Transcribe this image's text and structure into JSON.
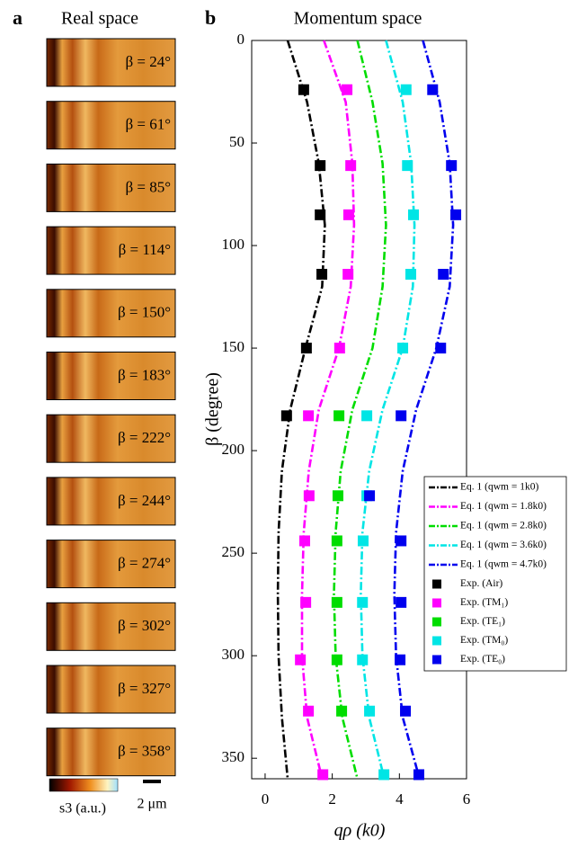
{
  "panel_a": {
    "label": "a",
    "title": "Real space",
    "tiles": [
      "β = 24°",
      "β = 61°",
      "β = 85°",
      "β = 114°",
      "β = 150°",
      "β = 183°",
      "β = 222°",
      "β = 244°",
      "β = 274°",
      "β = 302°",
      "β = 327°",
      "β = 358°"
    ],
    "colorbar_label": "s3 (a.u.)",
    "scale_label": "2 μm"
  },
  "chart_data": {
    "type": "line",
    "label": "b",
    "title": "Momentum space",
    "xlabel": "qρ (k0)",
    "ylabel": "β (degree)",
    "xlim": [
      -0.4,
      6
    ],
    "xticks": [
      0,
      2,
      4,
      6
    ],
    "ylim": [
      0,
      360
    ],
    "yticks": [
      0,
      50,
      100,
      150,
      200,
      250,
      300,
      350
    ],
    "y_inverted": true,
    "curve_beta": [
      0,
      30,
      60,
      90,
      120,
      150,
      180,
      210,
      240,
      270,
      300,
      330,
      360
    ],
    "curves": [
      {
        "name": "Eq. 1 (qwm = 1k0)",
        "color": "#000000",
        "values": [
          0.67,
          1.25,
          1.6,
          1.78,
          1.7,
          1.2,
          0.75,
          0.5,
          0.4,
          0.38,
          0.4,
          0.5,
          0.67
        ]
      },
      {
        "name": "Eq. 1 (qwm = 1.8k0)",
        "color": "#ff00ff",
        "values": [
          1.75,
          2.4,
          2.6,
          2.65,
          2.55,
          2.2,
          1.6,
          1.3,
          1.15,
          1.1,
          1.1,
          1.25,
          1.7
        ]
      },
      {
        "name": "Eq. 1 (qwm = 2.8k0)",
        "color": "#00dd00",
        "values": [
          2.75,
          3.2,
          3.5,
          3.6,
          3.5,
          3.2,
          2.6,
          2.25,
          2.1,
          2.05,
          2.1,
          2.3,
          2.75
        ]
      },
      {
        "name": "Eq. 1 (qwm = 3.6k0)",
        "color": "#00e5e5",
        "values": [
          3.6,
          4.1,
          4.35,
          4.45,
          4.4,
          4.1,
          3.5,
          3.1,
          2.9,
          2.85,
          2.9,
          3.1,
          3.55
        ]
      },
      {
        "name": "Eq. 1 (qwm = 4.7k0)",
        "color": "#0000ee",
        "values": [
          4.7,
          5.2,
          5.5,
          5.6,
          5.5,
          5.1,
          4.5,
          4.1,
          3.9,
          3.85,
          3.9,
          4.1,
          4.6
        ]
      }
    ],
    "exp_beta": [
      24,
      61,
      85,
      114,
      150,
      183,
      222,
      244,
      274,
      302,
      327,
      358
    ],
    "experiments": [
      {
        "name": "Exp. (Air)",
        "color": "#000000",
        "values": [
          1.15,
          1.64,
          1.64,
          1.69,
          1.23,
          0.64,
          null,
          null,
          null,
          null,
          null,
          null
        ]
      },
      {
        "name": "Exp. (TM₁)",
        "color": "#ff00ff",
        "values": [
          2.44,
          2.55,
          2.49,
          2.47,
          2.22,
          1.29,
          1.31,
          1.18,
          1.21,
          1.05,
          1.29,
          1.72
        ]
      },
      {
        "name": "Exp. (TE₁)",
        "color": "#00dd00",
        "values": [
          null,
          null,
          null,
          null,
          null,
          2.2,
          2.17,
          2.14,
          2.14,
          2.14,
          2.28,
          null
        ]
      },
      {
        "name": "Exp. (TM₀)",
        "color": "#00e5e5",
        "values": [
          4.2,
          4.24,
          4.42,
          4.34,
          4.1,
          3.03,
          3.03,
          2.92,
          2.9,
          2.9,
          3.11,
          3.54
        ]
      },
      {
        "name": "Exp. (TE₀)",
        "color": "#0000ee",
        "values": [
          4.99,
          5.55,
          5.68,
          5.31,
          5.23,
          4.05,
          3.11,
          4.05,
          4.05,
          4.02,
          4.18,
          4.58
        ]
      }
    ]
  }
}
